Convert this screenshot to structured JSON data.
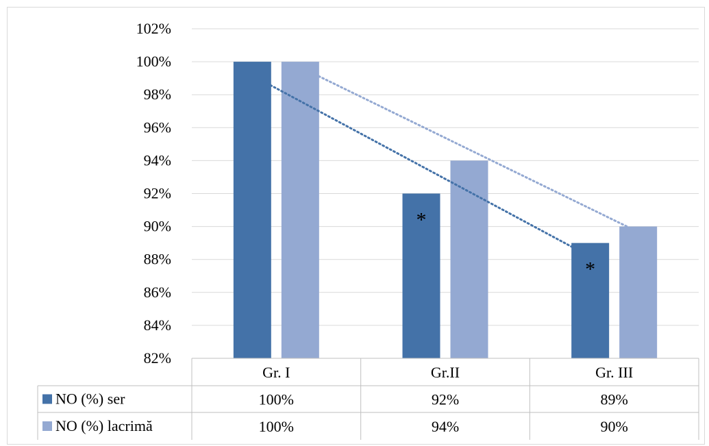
{
  "chart_data": {
    "type": "bar",
    "categories": [
      "Gr. I",
      "Gr.II",
      "Gr. III"
    ],
    "series": [
      {
        "name": "NO (%) ser",
        "values": [
          100,
          92,
          89
        ],
        "labels": [
          "100%",
          "92%",
          "89%"
        ],
        "color": "#4472a8"
      },
      {
        "name": "NO (%) lacrimă",
        "values": [
          100,
          94,
          90
        ],
        "labels": [
          "100%",
          "94%",
          "90%"
        ],
        "color": "#94a9d2"
      }
    ],
    "ylim": [
      82,
      102
    ],
    "ytick_values": [
      82,
      84,
      86,
      88,
      90,
      92,
      94,
      96,
      98,
      100,
      102
    ],
    "ytick_labels": [
      "82%",
      "84%",
      "86%",
      "88%",
      "90%",
      "92%",
      "94%",
      "96%",
      "98%",
      "100%",
      "102%"
    ],
    "annotations": [
      {
        "text": "*",
        "series": 0,
        "category": 1
      },
      {
        "text": "*",
        "series": 0,
        "category": 2
      }
    ],
    "trendlines": [
      {
        "series": 0,
        "style": "dotted",
        "color": "#4472a8"
      },
      {
        "series": 1,
        "style": "dotted",
        "color": "#94a9d2"
      }
    ],
    "grid": true,
    "legend": "data-table"
  }
}
